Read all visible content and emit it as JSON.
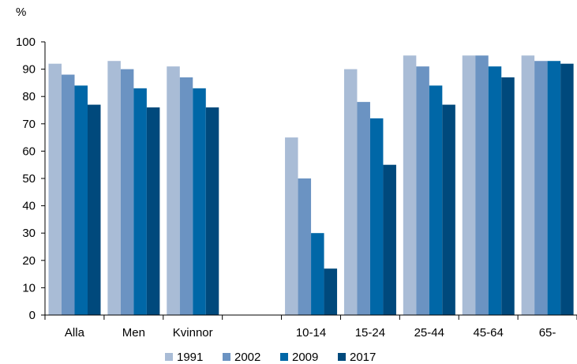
{
  "chart_data": {
    "type": "bar",
    "title": "",
    "xlabel": "",
    "ylabel": "%",
    "ylim": [
      0,
      100
    ],
    "yticks": [
      0,
      10,
      20,
      30,
      40,
      50,
      60,
      70,
      80,
      90,
      100
    ],
    "grid": false,
    "legend_position": "bottom",
    "categories": [
      "Alla",
      "Men",
      "Kvinnor",
      "",
      "10-14",
      "15-24",
      "25-44",
      "45-64",
      "65-"
    ],
    "series": [
      {
        "name": "1991",
        "color": "#a9bcd6",
        "values": [
          92,
          93,
          91,
          null,
          65,
          90,
          95,
          95,
          95
        ]
      },
      {
        "name": "2002",
        "color": "#6b93c2",
        "values": [
          88,
          90,
          87,
          null,
          50,
          78,
          91,
          95,
          93
        ]
      },
      {
        "name": "2009",
        "color": "#0067a7",
        "values": [
          84,
          83,
          83,
          null,
          30,
          72,
          84,
          91,
          93
        ]
      },
      {
        "name": "2017",
        "color": "#00497c",
        "values": [
          77,
          76,
          76,
          null,
          17,
          55,
          77,
          87,
          92
        ]
      }
    ]
  }
}
